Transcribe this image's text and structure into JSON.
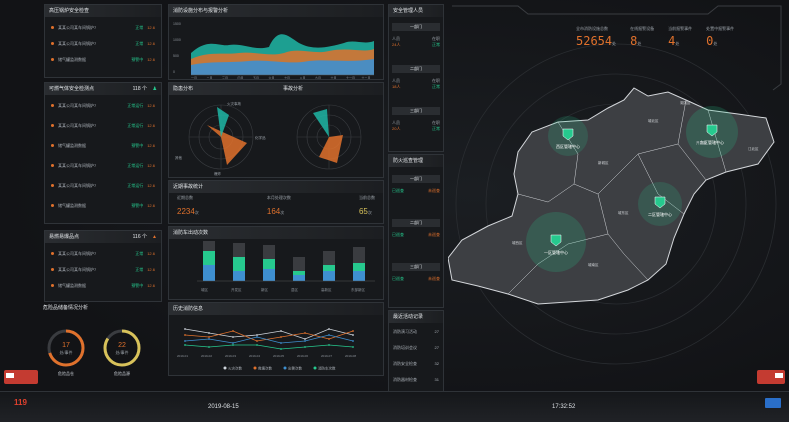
{
  "left": {
    "p1": {
      "title": "高压锅炉安全检查",
      "rows": [
        {
          "name": "某某公司某车间锅炉7",
          "status": "正常",
          "value": "12.6"
        },
        {
          "name": "某某公司某车间锅炉7",
          "status": "正常",
          "value": "12.6"
        },
        {
          "name": "储气罐监测数据",
          "status": "预警中",
          "value": "12.6"
        }
      ]
    },
    "p2": {
      "title": "可燃气体安全检测点",
      "count": "118 个",
      "rows": [
        {
          "name": "某某公司某车间锅炉7",
          "status": "正常运行",
          "value": "12.6"
        },
        {
          "name": "某某公司某车间锅炉7",
          "status": "正常运行",
          "value": "12.6"
        },
        {
          "name": "储气罐监测数据",
          "status": "预警中",
          "value": "12.6"
        },
        {
          "name": "某某公司某车间锅炉7",
          "status": "正常运行",
          "value": "12.6"
        },
        {
          "name": "某某公司某车间锅炉7",
          "status": "正常运行",
          "value": "12.6"
        },
        {
          "name": "储气罐监测数据",
          "status": "预警中",
          "value": "12.6"
        }
      ]
    },
    "p3": {
      "title": "易燃易爆品点",
      "count": "116 个",
      "rows": [
        {
          "name": "某某公司某车间锅炉7",
          "status": "正常",
          "value": "12.6"
        },
        {
          "name": "某某公司某车间锅炉7",
          "status": "正常",
          "value": "12.6"
        },
        {
          "name": "储气罐监测数据",
          "status": "预警中",
          "value": "12.6"
        }
      ]
    },
    "p4": {
      "title": "危险品储备情况分析",
      "gauges": [
        {
          "value": "17",
          "unit": "处/事件",
          "label": "危险品仓"
        },
        {
          "value": "22",
          "unit": "处/事件",
          "label": "危险品源"
        }
      ]
    }
  },
  "mid": {
    "area": {
      "title": "消防设施分布与报警分析",
      "ylabels": [
        "1500",
        "1000",
        "500",
        "0"
      ],
      "xlabels": [
        "一月",
        "二月",
        "三月",
        "四月",
        "五月",
        "六月",
        "七月",
        "八月",
        "九月",
        "十月",
        "十一月",
        "十二月"
      ]
    },
    "radar": {
      "title": "隐患排查",
      "left_title": "隐患分布",
      "right_title": "事故分析",
      "labels": [
        "火灾事故",
        "化学品",
        "爆炸",
        "其他"
      ]
    },
    "stats": {
      "title": "近期事故统计",
      "items": [
        {
          "label": "近期总数",
          "value": "2234",
          "unit": "次"
        },
        {
          "label": "本月处理次数",
          "value": "164",
          "unit": "次"
        },
        {
          "label": "当前总数",
          "value": "65",
          "unit": "次"
        }
      ]
    },
    "bars": {
      "title": "消防车出动次数",
      "categories": [
        "城区",
        "开发区",
        "新区",
        "县区",
        "高新区",
        "东部新区"
      ]
    },
    "line": {
      "title": "历史消防信息",
      "x": [
        "2019-01",
        "2019-02",
        "2019-03",
        "2019-04",
        "2019-05",
        "2019-06",
        "2019-07",
        "2019-08"
      ],
      "legend": [
        "火灾次数",
        "救援次数",
        "出警次数",
        "消防车次数"
      ]
    }
  },
  "right": {
    "title": "安全管理人员",
    "groups": [
      {
        "name": "一部门",
        "a": "人员",
        "b": "24人",
        "c": "在职",
        "d": "正常"
      },
      {
        "name": "二部门",
        "a": "人员",
        "b": "18人",
        "c": "在职",
        "d": "正常"
      },
      {
        "name": "三部门",
        "a": "人员",
        "b": "20人",
        "c": "在职",
        "d": "正常"
      }
    ],
    "title2": "防火巡查管理",
    "groups2": [
      {
        "name": "一部门",
        "a": "已巡查",
        "b": "未巡查"
      },
      {
        "name": "二部门",
        "a": "已巡查",
        "b": "未巡查"
      },
      {
        "name": "三部门",
        "a": "已巡查",
        "b": "未巡查"
      }
    ],
    "title3": "最近活动记录",
    "records": [
      {
        "a": "消防演习活动",
        "b": "27"
      },
      {
        "a": "消防培训会议",
        "b": "27"
      },
      {
        "a": "消防安全检查",
        "b": "32"
      },
      {
        "a": "消防器材检查",
        "b": "31"
      }
    ]
  },
  "map": {
    "stats": [
      {
        "label": "全市消防设施总数",
        "value": "52654",
        "unit": "处"
      },
      {
        "label": "在线报警设备",
        "value": "8",
        "unit": "处"
      },
      {
        "label": "当前报警事件",
        "value": "4",
        "unit": "处"
      },
      {
        "label": "处置中报警事件",
        "value": "0",
        "unit": "处"
      }
    ],
    "markers": [
      {
        "label": "西区管辖中心"
      },
      {
        "label": "东区管辖中心"
      },
      {
        "label": "二区管辖中心"
      },
      {
        "label": "一区管辖中心"
      }
    ],
    "regions": [
      "城北区",
      "开发区",
      "新城区",
      "城西区",
      "城南区",
      "城东区",
      "江北区",
      "湖滨区"
    ]
  },
  "footer": {
    "left": "119",
    "date": "2019-08-15",
    "time": "17:32:52"
  },
  "colors": {
    "accent": "#e0712c",
    "green": "#26c98e",
    "teal": "#1fb7a6",
    "bg": "#121316"
  }
}
